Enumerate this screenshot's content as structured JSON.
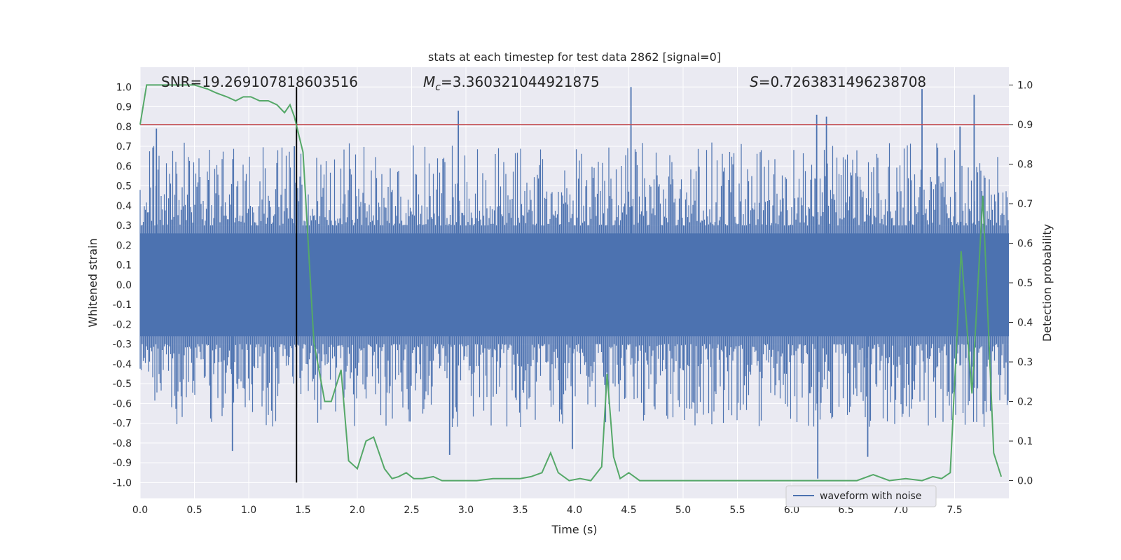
{
  "chart_data": {
    "type": "line",
    "title": "stats at each timestep for test data 2862 [signal=0]",
    "xlabel": "Time (s)",
    "ylabel": "Whitened strain",
    "y2label": "Detection probability",
    "xlim": [
      0.0,
      8.0
    ],
    "ylim": [
      -1.08,
      1.1
    ],
    "y2lim": [
      -0.045,
      1.045
    ],
    "xticks": [
      "0.0",
      "0.5",
      "1.0",
      "1.5",
      "2.0",
      "2.5",
      "3.0",
      "3.5",
      "4.0",
      "4.5",
      "5.0",
      "5.5",
      "6.0",
      "6.5",
      "7.0",
      "7.5"
    ],
    "yticks": [
      "1.0",
      "0.9",
      "0.8",
      "0.7",
      "0.6",
      "0.5",
      "0.4",
      "0.3",
      "0.2",
      "0.1",
      "0.0",
      "-0.1",
      "-0.2",
      "-0.3",
      "-0.4",
      "-0.5",
      "-0.6",
      "-0.7",
      "-0.8",
      "-0.9",
      "-1.0"
    ],
    "y2ticks": [
      "1.0",
      "0.9",
      "0.8",
      "0.7",
      "0.6",
      "0.5",
      "0.4",
      "0.3",
      "0.2",
      "0.1",
      "0.0"
    ],
    "annotations": {
      "snr": "SNR=19.269107818603516",
      "mc_symbol": "M",
      "mc_sub": "c",
      "mc_value": "=3.360321044921875",
      "s_symbol": "S",
      "s_value": "=0.7263831496238708"
    },
    "threshold": {
      "value": 0.9,
      "axis": "y2",
      "color": "#c44e52"
    },
    "marker_time": 1.44,
    "series": [
      {
        "name": "waveform with noise",
        "axis": "y1",
        "color": "#4c72b0",
        "kind": "noise",
        "band": [
          -0.26,
          0.26
        ],
        "peaks": [
          {
            "t": 0.15,
            "v": 0.79
          },
          {
            "t": 0.85,
            "v": -0.84
          },
          {
            "t": 1.42,
            "v": 0.7
          },
          {
            "t": 2.93,
            "v": 0.88
          },
          {
            "t": 2.85,
            "v": -0.86
          },
          {
            "t": 3.98,
            "v": -0.83
          },
          {
            "t": 4.52,
            "v": 1.0
          },
          {
            "t": 6.23,
            "v": 0.86
          },
          {
            "t": 6.32,
            "v": 0.85
          },
          {
            "t": 6.24,
            "v": -0.98
          },
          {
            "t": 6.7,
            "v": -0.87
          },
          {
            "t": 7.2,
            "v": 0.99
          },
          {
            "t": 7.68,
            "v": 0.96
          },
          {
            "t": 7.55,
            "v": 0.8
          }
        ]
      },
      {
        "name": "detection probability",
        "axis": "y2",
        "color": "#55a868",
        "x": [
          0.0,
          0.06,
          0.15,
          0.3,
          0.5,
          0.62,
          0.7,
          0.8,
          0.88,
          0.95,
          1.02,
          1.1,
          1.18,
          1.26,
          1.33,
          1.38,
          1.42,
          1.5,
          1.6,
          1.7,
          1.76,
          1.85,
          1.92,
          2.0,
          2.08,
          2.15,
          2.25,
          2.32,
          2.38,
          2.45,
          2.52,
          2.6,
          2.7,
          2.78,
          2.9,
          3.0,
          3.1,
          3.25,
          3.35,
          3.5,
          3.6,
          3.7,
          3.78,
          3.85,
          3.95,
          4.05,
          4.15,
          4.25,
          4.3,
          4.36,
          4.42,
          4.5,
          4.6,
          4.7,
          5.0,
          5.5,
          6.0,
          6.3,
          6.6,
          6.75,
          6.9,
          7.05,
          7.2,
          7.3,
          7.38,
          7.46,
          7.56,
          7.66,
          7.76,
          7.86,
          7.93
        ],
        "y": [
          0.9,
          1.0,
          1.0,
          1.0,
          1.0,
          0.99,
          0.98,
          0.97,
          0.96,
          0.97,
          0.97,
          0.96,
          0.96,
          0.95,
          0.93,
          0.95,
          0.92,
          0.83,
          0.35,
          0.2,
          0.2,
          0.28,
          0.05,
          0.03,
          0.1,
          0.11,
          0.03,
          0.005,
          0.01,
          0.02,
          0.005,
          0.005,
          0.01,
          0.0,
          0.0,
          0.0,
          0.0,
          0.005,
          0.005,
          0.005,
          0.01,
          0.02,
          0.07,
          0.02,
          0.0,
          0.005,
          0.0,
          0.035,
          0.27,
          0.06,
          0.005,
          0.02,
          0.0,
          0.0,
          0.0,
          0.0,
          0.0,
          0.0,
          0.0,
          0.015,
          0.0,
          0.005,
          0.0,
          0.01,
          0.005,
          0.02,
          0.58,
          0.22,
          0.72,
          0.07,
          0.01
        ]
      }
    ]
  },
  "legend": {
    "label": "waveform with noise"
  }
}
